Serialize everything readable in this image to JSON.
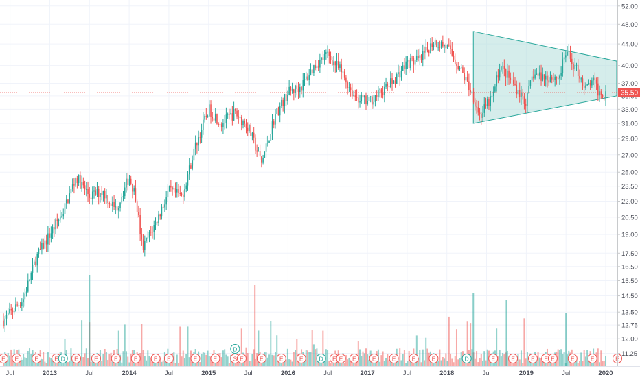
{
  "chart_data": {
    "type": "candlestick",
    "price_scale": "log",
    "ylim": [
      11.0,
      52.5
    ],
    "grid": true,
    "y_ticks": [
      "52.00",
      "48.00",
      "44.00",
      "40.00",
      "37.00",
      "35.00",
      "33.00",
      "31.00",
      "29.00",
      "27.00",
      "25.00",
      "23.50",
      "22.00",
      "20.50",
      "19.00",
      "17.50",
      "16.50",
      "15.50",
      "14.50",
      "13.50",
      "12.75",
      "12.00",
      "11.25"
    ],
    "x_ticks": [
      "Jul",
      "2013",
      "Jul",
      "2014",
      "Jul",
      "2015",
      "Jul",
      "2016",
      "Jul",
      "2017",
      "Jul",
      "2018",
      "Jul",
      "2019",
      "Jul",
      "2020"
    ],
    "last_price": 35.5,
    "last_price_label": "35.50",
    "colors": {
      "up": "#26a69a",
      "down": "#ef5350",
      "triangle_fill": "#b2dfdb",
      "triangle_line": "#26a69a",
      "price_line": "#ef5350"
    },
    "price_path": [
      {
        "t": "2012-06",
        "p": 13.0
      },
      {
        "t": "2012-09",
        "p": 14.3
      },
      {
        "t": "2012-11",
        "p": 17.2
      },
      {
        "t": "2013-01",
        "p": 19.0
      },
      {
        "t": "2013-03",
        "p": 21.0
      },
      {
        "t": "2013-05",
        "p": 24.5
      },
      {
        "t": "2013-07",
        "p": 22.5
      },
      {
        "t": "2013-09",
        "p": 23.0
      },
      {
        "t": "2013-11",
        "p": 21.2
      },
      {
        "t": "2014-01",
        "p": 24.5
      },
      {
        "t": "2014-02",
        "p": 22.5
      },
      {
        "t": "2014-03",
        "p": 17.8
      },
      {
        "t": "2014-05",
        "p": 20.0
      },
      {
        "t": "2014-07",
        "p": 23.0
      },
      {
        "t": "2014-09",
        "p": 22.5
      },
      {
        "t": "2014-11",
        "p": 28.0
      },
      {
        "t": "2015-01",
        "p": 33.0
      },
      {
        "t": "2015-03",
        "p": 31.0
      },
      {
        "t": "2015-05",
        "p": 32.5
      },
      {
        "t": "2015-07",
        "p": 30.5
      },
      {
        "t": "2015-09",
        "p": 26.0
      },
      {
        "t": "2015-11",
        "p": 32.0
      },
      {
        "t": "2016-01",
        "p": 35.5
      },
      {
        "t": "2016-03",
        "p": 36.5
      },
      {
        "t": "2016-05",
        "p": 40.0
      },
      {
        "t": "2016-07",
        "p": 42.0
      },
      {
        "t": "2016-09",
        "p": 39.0
      },
      {
        "t": "2016-11",
        "p": 35.0
      },
      {
        "t": "2017-01",
        "p": 34.0
      },
      {
        "t": "2017-03",
        "p": 35.5
      },
      {
        "t": "2017-05",
        "p": 37.5
      },
      {
        "t": "2017-07",
        "p": 40.5
      },
      {
        "t": "2017-09",
        "p": 41.0
      },
      {
        "t": "2017-11",
        "p": 44.5
      },
      {
        "t": "2018-01",
        "p": 43.5
      },
      {
        "t": "2018-03",
        "p": 39.5
      },
      {
        "t": "2018-05",
        "p": 35.0
      },
      {
        "t": "2018-06",
        "p": 32.0
      },
      {
        "t": "2018-08",
        "p": 35.0
      },
      {
        "t": "2018-09",
        "p": 40.0
      },
      {
        "t": "2018-11",
        "p": 37.0
      },
      {
        "t": "2019-01",
        "p": 34.0
      },
      {
        "t": "2019-02",
        "p": 38.5
      },
      {
        "t": "2019-04",
        "p": 38.0
      },
      {
        "t": "2019-06",
        "p": 38.0
      },
      {
        "t": "2019-07",
        "p": 42.5
      },
      {
        "t": "2019-09",
        "p": 38.5
      },
      {
        "t": "2019-10",
        "p": 36.0
      },
      {
        "t": "2019-11",
        "p": 37.5
      },
      {
        "t": "2019-12",
        "p": 35.5
      }
    ],
    "triangle": [
      {
        "t": "2018-05",
        "p": 46.5
      },
      {
        "t": "2020-01",
        "p": 40.8
      },
      {
        "t": "2020-01",
        "p": 35.0
      },
      {
        "t": "2018-05",
        "p": 31.0
      }
    ],
    "events": [
      {
        "t": "2012-06",
        "label": "E"
      },
      {
        "t": "2012-08",
        "label": "E"
      },
      {
        "t": "2012-11",
        "label": "E"
      },
      {
        "t": "2013-02",
        "label": "E"
      },
      {
        "t": "2013-03",
        "label": "D"
      },
      {
        "t": "2013-05",
        "label": "E"
      },
      {
        "t": "2013-08",
        "label": "E"
      },
      {
        "t": "2013-11",
        "label": "E"
      },
      {
        "t": "2014-02",
        "label": "E"
      },
      {
        "t": "2014-05",
        "label": "E"
      },
      {
        "t": "2014-07",
        "label": "E"
      },
      {
        "t": "2014-11",
        "label": "E"
      },
      {
        "t": "2015-02",
        "label": "E"
      },
      {
        "t": "2015-05",
        "label": "S"
      },
      {
        "t": "2015-06",
        "label": "E"
      },
      {
        "t": "2015-09",
        "label": "E"
      },
      {
        "t": "2015-12",
        "label": "E"
      },
      {
        "t": "2016-03",
        "label": "E"
      },
      {
        "t": "2016-06",
        "label": "D"
      },
      {
        "t": "2016-08",
        "label": "E"
      },
      {
        "t": "2016-09",
        "label": "E"
      },
      {
        "t": "2016-11",
        "label": "E"
      },
      {
        "t": "2017-02",
        "label": "E"
      },
      {
        "t": "2017-05",
        "label": "E"
      },
      {
        "t": "2017-08",
        "label": "E"
      },
      {
        "t": "2017-11",
        "label": "E"
      },
      {
        "t": "2018-04",
        "label": "D"
      },
      {
        "t": "2018-08",
        "label": "E"
      },
      {
        "t": "2018-11",
        "label": "E"
      },
      {
        "t": "2019-02",
        "label": "E"
      },
      {
        "t": "2019-04",
        "label": "E"
      },
      {
        "t": "2019-05",
        "label": "E"
      },
      {
        "t": "2019-08",
        "label": "E"
      },
      {
        "t": "2019-11",
        "label": "E"
      },
      {
        "t": "2020-01",
        "label": "E"
      }
    ],
    "event_dividend_marker": {
      "t": "2015-05",
      "label": "D"
    }
  }
}
